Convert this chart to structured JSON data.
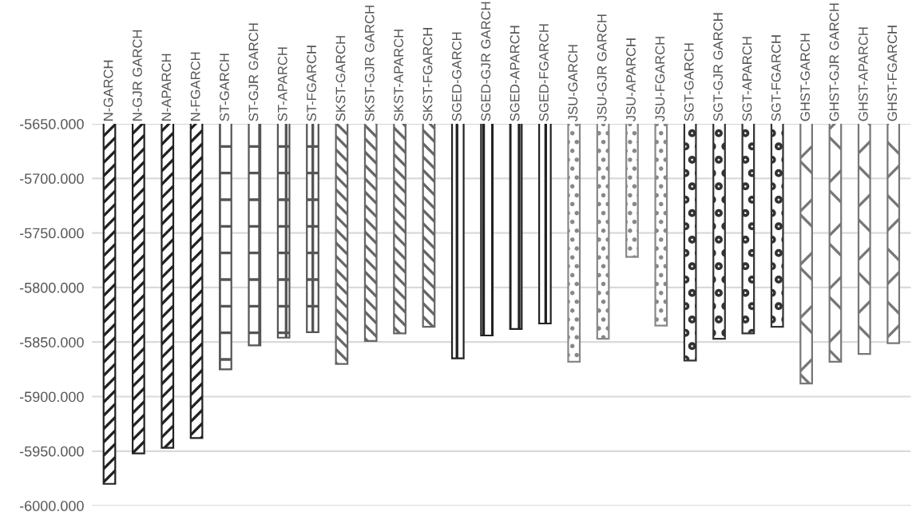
{
  "chart_data": {
    "type": "bar",
    "categories": [
      "N-GARCH",
      "N-GJR GARCH",
      "N-APARCH",
      "N-FGARCH",
      "ST-GARCH",
      "ST-GJR GARCH",
      "ST-APARCH",
      "ST-FGARCH",
      "SKST-GARCH",
      "SKST-GJR GARCH",
      "SKST-APARCH",
      "SKST-FGARCH",
      "SGED-GARCH",
      "SGED-GJR GARCH",
      "SGED-APARCH",
      "SGED-FGARCH",
      "JSU-GARCH",
      "JSU-GJR GARCH",
      "JSU-APARCH",
      "JSU-FGARCH",
      "SGT-GARCH",
      "SGT-GJR GARCH",
      "SGT-APARCH",
      "SGT-FGARCH",
      "GHST-GARCH",
      "GHST-GJR GARCH",
      "GHST-APARCH",
      "GHST-FGARCH"
    ],
    "values": [
      -5980,
      -5952,
      -5947,
      -5938,
      -5875,
      -5853,
      -5846,
      -5841,
      -5870,
      -5849,
      -5842,
      -5836,
      -5865,
      -5844,
      -5838,
      -5833,
      -5868,
      -5847,
      -5772,
      -5835,
      -5867,
      -5847,
      -5842,
      -5836,
      -5888,
      -5868,
      -5861,
      -5851
    ],
    "colors": [
      "#222222",
      "#222222",
      "#222222",
      "#222222",
      "#555555",
      "#555555",
      "#555555",
      "#555555",
      "#666666",
      "#666666",
      "#666666",
      "#666666",
      "#222222",
      "#222222",
      "#222222",
      "#222222",
      "#888888",
      "#888888",
      "#888888",
      "#888888",
      "#333333",
      "#333333",
      "#333333",
      "#333333",
      "#777777",
      "#777777",
      "#777777",
      "#777777"
    ],
    "ylim": [
      -6000,
      -5650
    ],
    "yticks": [
      {
        "value": -6000,
        "label": "-6000.000"
      },
      {
        "value": -5950,
        "label": "-5950.000"
      },
      {
        "value": -5900,
        "label": "-5900.000"
      },
      {
        "value": -5850,
        "label": "-5850.000"
      },
      {
        "value": -5800,
        "label": "-5800.000"
      },
      {
        "value": -5750,
        "label": "-5750.000"
      },
      {
        "value": -5700,
        "label": "-5700.000"
      },
      {
        "value": -5650,
        "label": "-5650.000"
      }
    ],
    "grid": "y"
  }
}
